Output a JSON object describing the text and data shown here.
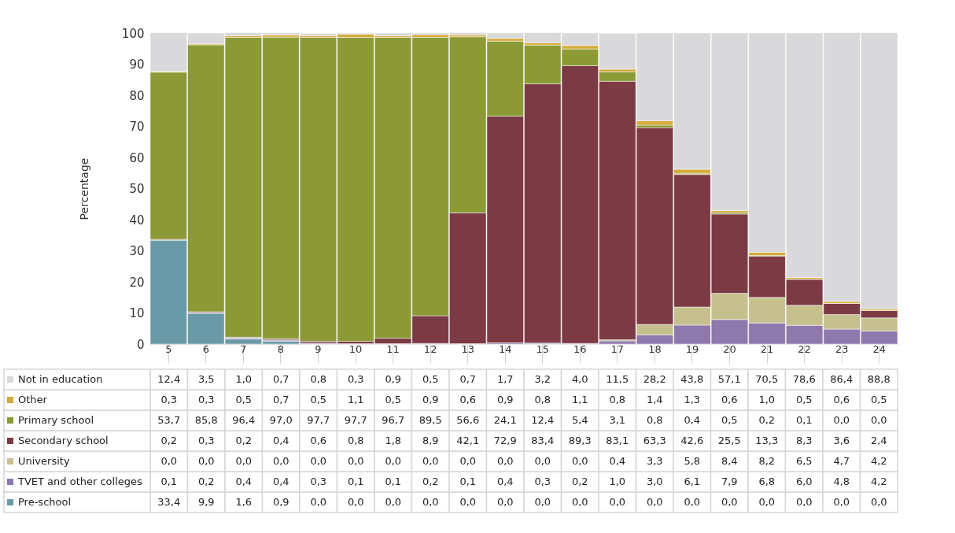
{
  "chart_data": {
    "type": "bar",
    "stacked": true,
    "ylabel": "Percentage",
    "ylim": [
      0,
      100
    ],
    "yticks": [
      0,
      10,
      20,
      30,
      40,
      50,
      60,
      70,
      80,
      90,
      100
    ],
    "grid": false,
    "legend": "bottom",
    "categories": [
      "5",
      "6",
      "7",
      "8",
      "9",
      "10",
      "11",
      "12",
      "13",
      "14",
      "15",
      "16",
      "17",
      "18",
      "19",
      "20",
      "21",
      "22",
      "23",
      "24"
    ],
    "series": [
      {
        "name": "Pre-school",
        "color": "#6a9aa8",
        "values": [
          33.4,
          9.9,
          1.6,
          0.9,
          0.0,
          0.0,
          0.0,
          0.0,
          0.0,
          0.0,
          0.0,
          0.0,
          0.0,
          0.0,
          0.0,
          0.0,
          0.0,
          0.0,
          0.0,
          0.0
        ],
        "value_labels": [
          "33,4",
          "9,9",
          "1,6",
          "0,9",
          "0,0",
          "0,0",
          "0,0",
          "0,0",
          "0,0",
          "0,0",
          "0,0",
          "0,0",
          "0,0",
          "0,0",
          "0,0",
          "0,0",
          "0,0",
          "0,0",
          "0,0",
          "0,0"
        ]
      },
      {
        "name": "TVET and other colleges",
        "color": "#8e79ad",
        "values": [
          0.1,
          0.2,
          0.4,
          0.4,
          0.3,
          0.1,
          0.1,
          0.2,
          0.1,
          0.4,
          0.3,
          0.2,
          1.0,
          3.0,
          6.1,
          7.9,
          6.8,
          6.0,
          4.8,
          4.2
        ],
        "value_labels": [
          "0,1",
          "0,2",
          "0,4",
          "0,4",
          "0,3",
          "0,1",
          "0,1",
          "0,2",
          "0,1",
          "0,4",
          "0,3",
          "0,2",
          "1,0",
          "3,0",
          "6,1",
          "7,9",
          "6,8",
          "6,0",
          "4,8",
          "4,2"
        ]
      },
      {
        "name": "University",
        "color": "#c5c08e",
        "values": [
          0.0,
          0.0,
          0.0,
          0.0,
          0.0,
          0.0,
          0.0,
          0.0,
          0.0,
          0.0,
          0.0,
          0.0,
          0.4,
          3.3,
          5.8,
          8.4,
          8.2,
          6.5,
          4.7,
          4.2
        ],
        "value_labels": [
          "0,0",
          "0,0",
          "0,0",
          "0,0",
          "0,0",
          "0,0",
          "0,0",
          "0,0",
          "0,0",
          "0,0",
          "0,0",
          "0,0",
          "0,4",
          "3,3",
          "5,8",
          "8,4",
          "8,2",
          "6,5",
          "4,7",
          "4,2"
        ]
      },
      {
        "name": "Secondary school",
        "color": "#7b3a44",
        "values": [
          0.2,
          0.3,
          0.2,
          0.4,
          0.6,
          0.8,
          1.8,
          8.9,
          42.1,
          72.9,
          83.4,
          89.3,
          83.1,
          63.3,
          42.6,
          25.5,
          13.3,
          8.3,
          3.6,
          2.4
        ],
        "value_labels": [
          "0,2",
          "0,3",
          "0,2",
          "0,4",
          "0,6",
          "0,8",
          "1,8",
          "8,9",
          "42,1",
          "72,9",
          "83,4",
          "89,3",
          "83,1",
          "63,3",
          "42,6",
          "25,5",
          "13,3",
          "8,3",
          "3,6",
          "2,4"
        ]
      },
      {
        "name": "Primary school",
        "color": "#8c9a36",
        "values": [
          53.7,
          85.8,
          96.4,
          97.0,
          97.7,
          97.7,
          96.7,
          89.5,
          56.6,
          24.1,
          12.4,
          5.4,
          3.1,
          0.8,
          0.4,
          0.5,
          0.2,
          0.1,
          0.0,
          0.0
        ],
        "value_labels": [
          "53,7",
          "85,8",
          "96,4",
          "97,0",
          "97,7",
          "97,7",
          "96,7",
          "89,5",
          "56,6",
          "24,1",
          "12,4",
          "5,4",
          "3,1",
          "0,8",
          "0,4",
          "0,5",
          "0,2",
          "0,1",
          "0,0",
          "0,0"
        ]
      },
      {
        "name": "Other",
        "color": "#d4aa3a",
        "values": [
          0.3,
          0.3,
          0.5,
          0.7,
          0.5,
          1.1,
          0.5,
          0.9,
          0.6,
          0.9,
          0.8,
          1.1,
          0.8,
          1.4,
          1.3,
          0.6,
          1.0,
          0.5,
          0.6,
          0.5
        ],
        "value_labels": [
          "0,3",
          "0,3",
          "0,5",
          "0,7",
          "0,5",
          "1,1",
          "0,5",
          "0,9",
          "0,6",
          "0,9",
          "0,8",
          "1,1",
          "0,8",
          "1,4",
          "1,3",
          "0,6",
          "1,0",
          "0,5",
          "0,6",
          "0,5"
        ]
      },
      {
        "name": "Not in education",
        "color": "#d9d9db",
        "values": [
          12.4,
          3.5,
          1.0,
          0.7,
          0.8,
          0.3,
          0.9,
          0.5,
          0.7,
          1.7,
          3.2,
          4.0,
          11.5,
          28.2,
          43.8,
          57.1,
          70.5,
          78.6,
          86.4,
          88.8
        ],
        "value_labels": [
          "12,4",
          "3,5",
          "1,0",
          "0,7",
          "0,8",
          "0,3",
          "0,9",
          "0,5",
          "0,7",
          "1,7",
          "3,2",
          "4,0",
          "11,5",
          "28,2",
          "43,8",
          "57,1",
          "70,5",
          "78,6",
          "86,4",
          "88,8"
        ]
      }
    ]
  }
}
